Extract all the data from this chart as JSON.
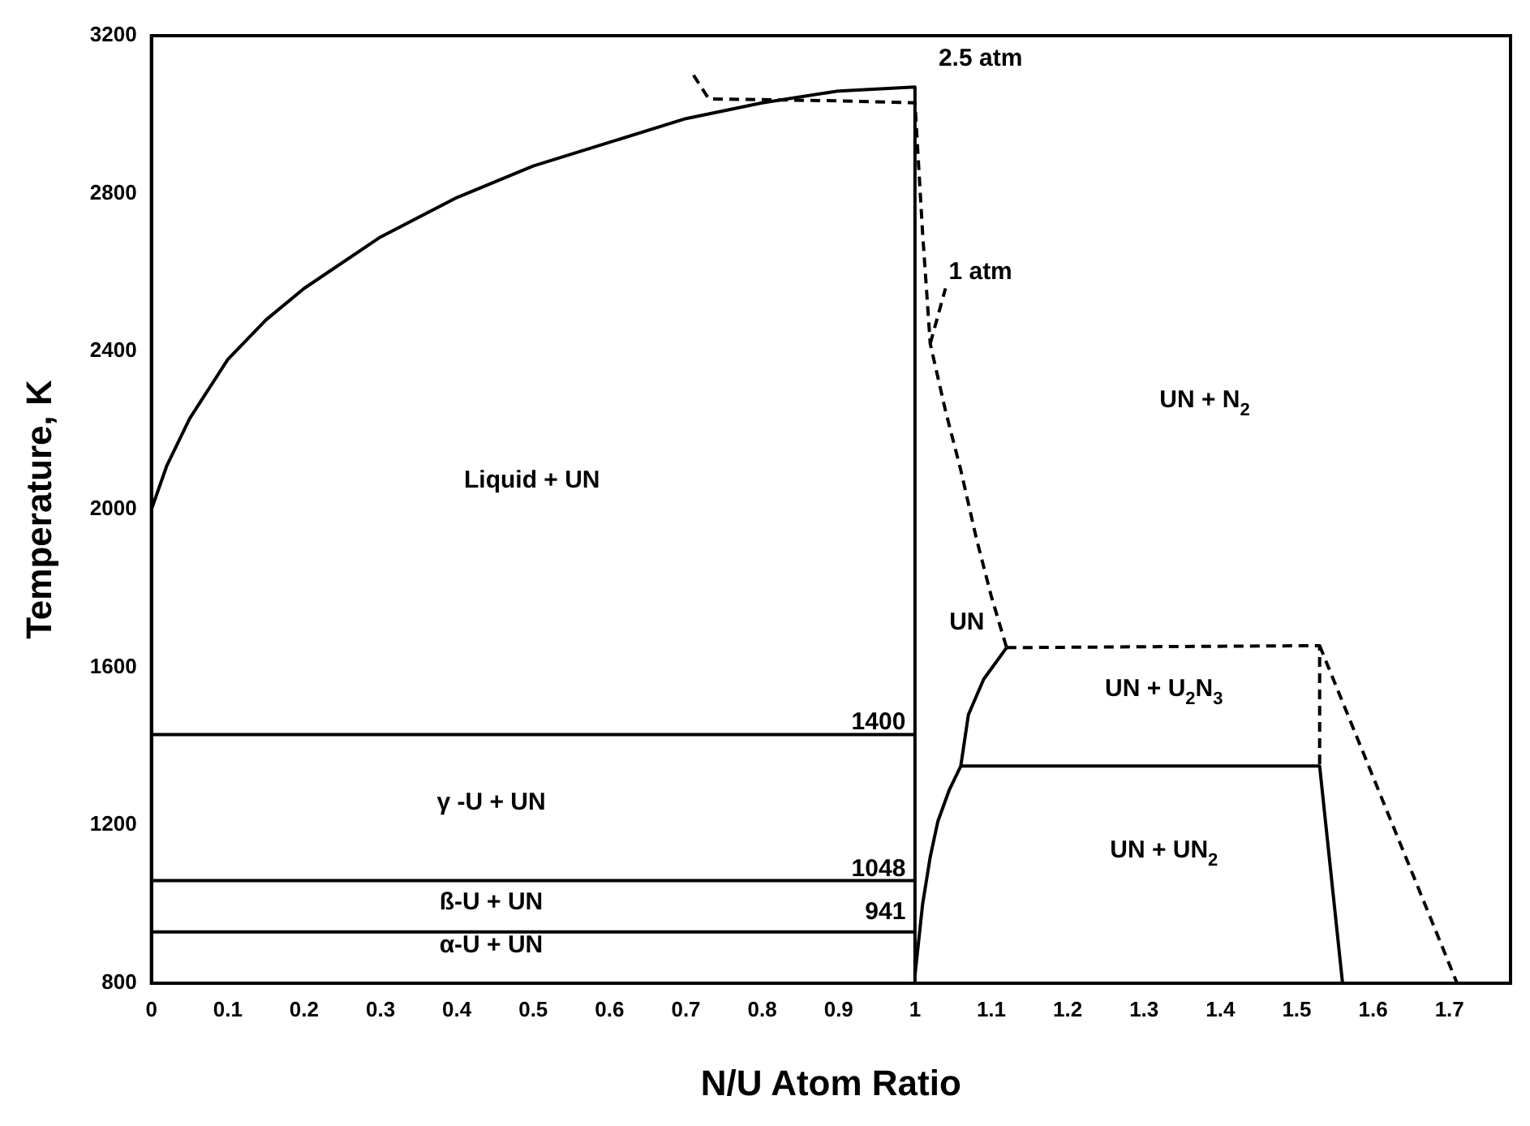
{
  "chart_data": {
    "type": "line",
    "xlabel": "N/U Atom Ratio",
    "ylabel": "Temperature, K",
    "xlim": [
      0,
      1.78
    ],
    "ylim": [
      800,
      3200
    ],
    "xticks": [
      0,
      0.1,
      0.2,
      0.3,
      0.4,
      0.5,
      0.6,
      0.7,
      0.8,
      0.9,
      1.0,
      1.1,
      1.2,
      1.3,
      1.4,
      1.5,
      1.6,
      1.7
    ],
    "yticks": [
      800,
      1200,
      1600,
      2000,
      2400,
      2800,
      3200
    ],
    "series": [
      {
        "color": "#000000",
        "x": [
          0,
          0.02,
          0.05,
          0.1,
          0.15,
          0.2,
          0.3,
          0.4,
          0.5,
          0.6,
          0.7,
          0.8,
          0.9,
          1.0,
          1.0
        ],
        "values": [
          2000,
          2110,
          2230,
          2380,
          2480,
          2560,
          2690,
          2790,
          2870,
          2930,
          2990,
          3030,
          3060,
          3070,
          800
        ]
      },
      {
        "color": "#000000",
        "x": [
          0,
          1.0
        ],
        "values": [
          1430,
          1430
        ]
      },
      {
        "color": "#000000",
        "x": [
          0,
          1.0
        ],
        "values": [
          1060,
          1060
        ]
      },
      {
        "color": "#000000",
        "x": [
          0,
          1.0
        ],
        "values": [
          930,
          930
        ]
      },
      {
        "color": "#000000",
        "line_style": "dashed",
        "x": [
          0.71,
          0.73,
          0.9,
          1.0,
          1.01,
          1.02,
          1.04,
          1.06,
          1.08,
          1.1,
          1.12
        ],
        "values": [
          3100,
          3040,
          3035,
          3030,
          2700,
          2420,
          2250,
          2100,
          1930,
          1780,
          1650
        ]
      },
      {
        "color": "#000000",
        "line_style": "dashed",
        "x": [
          1.02,
          1.04
        ],
        "values": [
          2420,
          2560
        ]
      },
      {
        "color": "#000000",
        "x": [
          1.0,
          1.01,
          1.02,
          1.03,
          1.045,
          1.06,
          1.07,
          1.09,
          1.12
        ],
        "values": [
          820,
          1000,
          1120,
          1210,
          1290,
          1350,
          1480,
          1570,
          1650
        ]
      },
      {
        "color": "#000000",
        "x": [
          1.06,
          1.53,
          1.56
        ],
        "values": [
          1350,
          1350,
          800
        ]
      },
      {
        "color": "#000000",
        "line_style": "dashed",
        "x": [
          1.12,
          1.53,
          1.53
        ],
        "values": [
          1650,
          1655,
          1350
        ]
      },
      {
        "color": "#000000",
        "line_style": "dashed",
        "x": [
          1.53,
          1.71
        ],
        "values": [
          1655,
          800
        ]
      }
    ],
    "annotations": [
      "Liquid + UN",
      "γ -U + UN",
      "ß-U + UN",
      "α-U + UN",
      "1400",
      "1048",
      "941",
      "2.5 atm",
      "1 atm",
      "UN + N$_{2}$",
      "UN",
      "UN + U$_{2}$N$_{3}$",
      "UN + UN$_{2}$"
    ]
  }
}
